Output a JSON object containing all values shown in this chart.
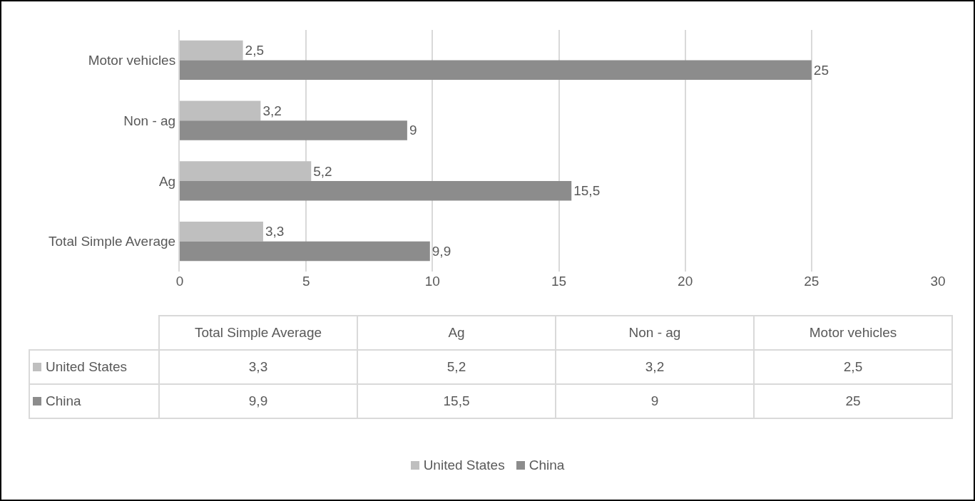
{
  "chart_data": {
    "type": "bar",
    "orientation": "horizontal",
    "categories": [
      "Motor vehicles",
      "Non - ag",
      "Ag",
      "Total Simple Average"
    ],
    "series": [
      {
        "name": "United States",
        "color": "#bfbfbf",
        "values": [
          2.5,
          3.2,
          5.2,
          3.3
        ],
        "value_labels": [
          "2,5",
          "3,2",
          "5,2",
          "3,3"
        ]
      },
      {
        "name": "China",
        "color": "#8c8c8c",
        "values": [
          25,
          9,
          15.5,
          9.9
        ],
        "value_labels": [
          "25",
          "9",
          "15,5",
          "9,9"
        ]
      }
    ],
    "xlim": [
      0,
      30
    ],
    "xticks": [
      0,
      5,
      10,
      15,
      20,
      25,
      30
    ],
    "grid": "x",
    "legend": "bottom"
  }
}
